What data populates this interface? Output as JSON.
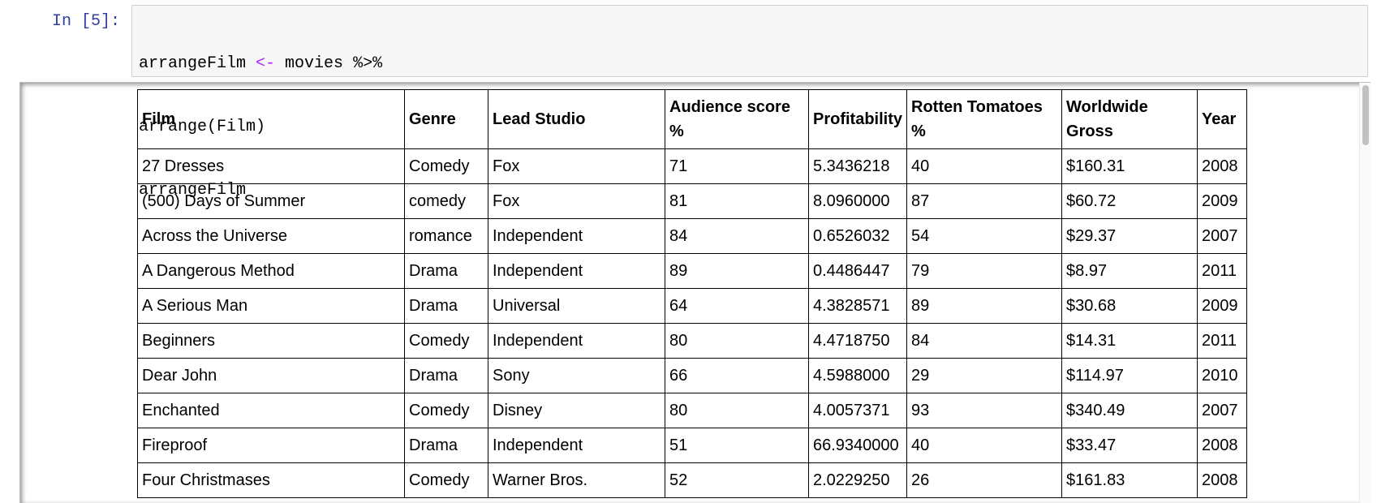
{
  "cell": {
    "prompt": "In [5]:",
    "code_line1_a": "arrangeFilm ",
    "code_line1_op": "<-",
    "code_line1_b": " movies %>%",
    "code_line2": "arrange(Film)",
    "code_line3": "arrangeFilm"
  },
  "colors": {
    "prompt": "#303f9f",
    "assign_operator": "#aa22ff",
    "code_background": "#f7f7f7"
  },
  "table": {
    "headers": {
      "film": "Film",
      "genre": "Genre",
      "studio": "Lead Studio",
      "audience": "Audience score %",
      "profit": "Profitability",
      "rotten": "Rotten Tomatoes %",
      "gross": "Worldwide Gross",
      "year": "Year"
    },
    "rows": [
      [
        "27 Dresses",
        "Comedy",
        "Fox",
        "71",
        "5.3436218",
        "40",
        "$160.31",
        "2008"
      ],
      [
        "(500) Days of Summer",
        "comedy",
        "Fox",
        "81",
        "8.0960000",
        "87",
        "$60.72",
        "2009"
      ],
      [
        "Across the Universe",
        "romance",
        "Independent",
        "84",
        "0.6526032",
        "54",
        "$29.37",
        "2007"
      ],
      [
        "A Dangerous Method",
        "Drama",
        "Independent",
        "89",
        "0.4486447",
        "79",
        "$8.97",
        "2011"
      ],
      [
        "A Serious Man",
        "Drama",
        "Universal",
        "64",
        "4.3828571",
        "89",
        "$30.68",
        "2009"
      ],
      [
        "Beginners",
        "Comedy",
        "Independent",
        "80",
        "4.4718750",
        "84",
        "$14.31",
        "2011"
      ],
      [
        "Dear John",
        "Drama",
        "Sony",
        "66",
        "4.5988000",
        "29",
        "$114.97",
        "2010"
      ],
      [
        "Enchanted",
        "Comedy",
        "Disney",
        "80",
        "4.0057371",
        "93",
        "$340.49",
        "2007"
      ],
      [
        "Fireproof",
        "Drama",
        "Independent",
        "51",
        "66.9340000",
        "40",
        "$33.47",
        "2008"
      ],
      [
        "Four Christmases",
        "Comedy",
        "Warner Bros.",
        "52",
        "2.0229250",
        "26",
        "$161.83",
        "2008"
      ]
    ]
  }
}
